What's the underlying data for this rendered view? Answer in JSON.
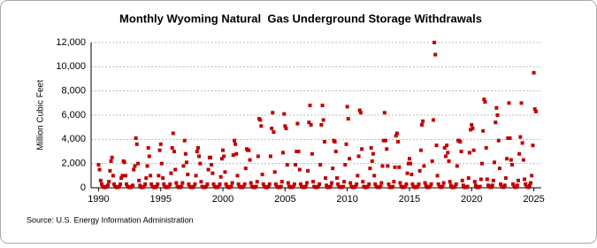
{
  "chart_data": {
    "type": "scatter",
    "title": "Monthly Wyoming Natural  Gas Underground Storage Withdrawals",
    "y_label": "Million Cubic Feet",
    "source": "Source: U.S. Energy Information Administration",
    "color": "#c00000",
    "grid": true,
    "xlim": [
      1989.4,
      2025.6
    ],
    "xticks": [
      1990,
      1995,
      2000,
      2005,
      2010,
      2015,
      2020,
      2025
    ],
    "ylim": [
      0,
      12000
    ],
    "yticks": [
      0,
      {
        "value": 2000,
        "label": "2,000"
      },
      {
        "value": 4000,
        "label": "4,000"
      },
      {
        "value": 6000,
        "label": "6,000"
      },
      {
        "value": 8000,
        "label": "8,000"
      },
      {
        "value": 10000,
        "label": "10,000"
      },
      {
        "value": 12000,
        "label": "12,000"
      }
    ],
    "x": [
      1990,
      1990.08,
      1990.17,
      1990.25,
      1990.33,
      1990.42,
      1990.5,
      1990.58,
      1990.67,
      1990.75,
      1990.83,
      1990.92,
      1991,
      1991.08,
      1991.17,
      1991.25,
      1991.33,
      1991.42,
      1991.5,
      1991.58,
      1991.67,
      1991.75,
      1991.83,
      1991.92,
      1992,
      1992.08,
      1992.17,
      1992.25,
      1992.33,
      1992.42,
      1992.5,
      1992.58,
      1992.67,
      1992.75,
      1992.83,
      1992.92,
      1993,
      1993.08,
      1993.17,
      1993.25,
      1993.33,
      1993.42,
      1993.5,
      1993.58,
      1993.67,
      1993.75,
      1993.83,
      1993.92,
      1994,
      1994.08,
      1994.17,
      1994.25,
      1994.33,
      1994.42,
      1994.5,
      1994.58,
      1994.67,
      1994.75,
      1994.83,
      1994.92,
      1995,
      1995.08,
      1995.17,
      1995.25,
      1995.33,
      1995.42,
      1995.5,
      1995.58,
      1995.67,
      1995.75,
      1995.83,
      1995.92,
      1996,
      1996.08,
      1996.17,
      1996.25,
      1996.33,
      1996.42,
      1996.5,
      1996.58,
      1996.67,
      1996.75,
      1996.83,
      1996.92,
      1997,
      1997.08,
      1997.17,
      1997.25,
      1997.33,
      1997.42,
      1997.5,
      1997.58,
      1997.67,
      1997.75,
      1997.83,
      1997.92,
      1998,
      1998.08,
      1998.17,
      1998.25,
      1998.33,
      1998.42,
      1998.5,
      1998.58,
      1998.67,
      1998.75,
      1998.83,
      1998.92,
      1999,
      1999.08,
      1999.17,
      1999.25,
      1999.33,
      1999.42,
      1999.5,
      1999.58,
      1999.67,
      1999.75,
      1999.83,
      1999.92,
      2000,
      2000.08,
      2000.17,
      2000.25,
      2000.33,
      2000.42,
      2000.5,
      2000.58,
      2000.67,
      2000.75,
      2000.83,
      2000.92,
      2001,
      2001.08,
      2001.17,
      2001.25,
      2001.33,
      2001.42,
      2001.5,
      2001.58,
      2001.67,
      2001.75,
      2001.83,
      2001.92,
      2002,
      2002.08,
      2002.17,
      2002.25,
      2002.33,
      2002.42,
      2002.5,
      2002.58,
      2002.67,
      2002.75,
      2002.83,
      2002.92,
      2003,
      2003.08,
      2003.17,
      2003.25,
      2003.33,
      2003.42,
      2003.5,
      2003.58,
      2003.67,
      2003.75,
      2003.83,
      2003.92,
      2004,
      2004.08,
      2004.17,
      2004.25,
      2004.33,
      2004.42,
      2004.5,
      2004.58,
      2004.67,
      2004.75,
      2004.83,
      2004.92,
      2005,
      2005.08,
      2005.17,
      2005.25,
      2005.33,
      2005.42,
      2005.5,
      2005.58,
      2005.67,
      2005.75,
      2005.83,
      2005.92,
      2006,
      2006.08,
      2006.17,
      2006.25,
      2006.33,
      2006.42,
      2006.5,
      2006.58,
      2006.67,
      2006.75,
      2006.83,
      2006.92,
      2007,
      2007.08,
      2007.17,
      2007.25,
      2007.33,
      2007.42,
      2007.5,
      2007.58,
      2007.67,
      2007.75,
      2007.83,
      2007.92,
      2008,
      2008.08,
      2008.17,
      2008.25,
      2008.33,
      2008.42,
      2008.5,
      2008.58,
      2008.67,
      2008.75,
      2008.83,
      2008.92,
      2009,
      2009.08,
      2009.17,
      2009.25,
      2009.33,
      2009.42,
      2009.5,
      2009.58,
      2009.67,
      2009.75,
      2009.83,
      2009.92,
      2010,
      2010.08,
      2010.17,
      2010.25,
      2010.33,
      2010.42,
      2010.5,
      2010.58,
      2010.67,
      2010.75,
      2010.83,
      2010.92,
      2011,
      2011.08,
      2011.17,
      2011.25,
      2011.33,
      2011.42,
      2011.5,
      2011.58,
      2011.67,
      2011.75,
      2011.83,
      2011.92,
      2012,
      2012.08,
      2012.17,
      2012.25,
      2012.33,
      2012.42,
      2012.5,
      2012.58,
      2012.67,
      2012.75,
      2012.83,
      2012.92,
      2013,
      2013.08,
      2013.17,
      2013.25,
      2013.33,
      2013.42,
      2013.5,
      2013.58,
      2013.67,
      2013.75,
      2013.83,
      2013.92,
      2014,
      2014.08,
      2014.17,
      2014.25,
      2014.33,
      2014.42,
      2014.5,
      2014.58,
      2014.67,
      2014.75,
      2014.83,
      2014.92,
      2015,
      2015.08,
      2015.17,
      2015.25,
      2015.33,
      2015.42,
      2015.5,
      2015.58,
      2015.67,
      2015.75,
      2015.83,
      2015.92,
      2016,
      2016.08,
      2016.17,
      2016.25,
      2016.33,
      2016.42,
      2016.5,
      2016.58,
      2016.67,
      2016.75,
      2016.83,
      2016.92,
      2017,
      2017.08,
      2017.17,
      2017.25,
      2017.33,
      2017.42,
      2017.5,
      2017.58,
      2017.67,
      2017.75,
      2017.83,
      2017.92,
      2018,
      2018.08,
      2018.17,
      2018.25,
      2018.33,
      2018.42,
      2018.5,
      2018.58,
      2018.67,
      2018.75,
      2018.83,
      2018.92,
      2019,
      2019.08,
      2019.17,
      2019.25,
      2019.33,
      2019.42,
      2019.5,
      2019.58,
      2019.67,
      2019.75,
      2019.83,
      2019.92,
      2020,
      2020.08,
      2020.17,
      2020.25,
      2020.33,
      2020.42,
      2020.5,
      2020.58,
      2020.67,
      2020.75,
      2020.83,
      2020.92,
      2021,
      2021.08,
      2021.17,
      2021.25,
      2021.33,
      2021.42,
      2021.5,
      2021.58,
      2021.67,
      2021.75,
      2021.83,
      2021.92,
      2022,
      2022.08,
      2022.17,
      2022.25,
      2022.33,
      2022.42,
      2022.5,
      2022.58,
      2022.67,
      2022.75,
      2022.83,
      2022.92,
      2023,
      2023.08,
      2023.17,
      2023.25,
      2023.33,
      2023.42,
      2023.5,
      2023.58,
      2023.67,
      2023.75,
      2023.83,
      2023.92,
      2024,
      2024.08,
      2024.17,
      2024.25,
      2024.33,
      2024.42,
      2024.5,
      2024.58,
      2024.67,
      2024.75,
      2024.83,
      2024.92,
      2025,
      2025.08,
      2025.17
    ],
    "values": [
      1900,
      1500,
      600,
      300,
      100,
      50,
      30,
      50,
      100,
      200,
      500,
      1400,
      2200,
      2500,
      1000,
      300,
      100,
      50,
      30,
      50,
      100,
      300,
      800,
      1000,
      2200,
      2100,
      1000,
      300,
      100,
      50,
      30,
      50,
      100,
      200,
      1500,
      1800,
      4100,
      3600,
      2000,
      600,
      200,
      50,
      30,
      50,
      100,
      300,
      800,
      1800,
      3300,
      2600,
      1000,
      300,
      100,
      50,
      30,
      50,
      100,
      300,
      1000,
      3100,
      3600,
      2000,
      800,
      300,
      100,
      50,
      30,
      50,
      100,
      300,
      1200,
      3300,
      4500,
      3000,
      1500,
      400,
      100,
      50,
      30,
      50,
      100,
      400,
      1800,
      3900,
      2800,
      2100,
      1100,
      300,
      100,
      50,
      30,
      50,
      100,
      300,
      1000,
      3000,
      3300,
      2600,
      2000,
      500,
      100,
      50,
      30,
      50,
      100,
      300,
      1500,
      2500,
      2500,
      1900,
      1200,
      300,
      100,
      50,
      30,
      50,
      100,
      300,
      900,
      2400,
      3100,
      2600,
      1300,
      300,
      100,
      50,
      30,
      50,
      100,
      400,
      2700,
      3900,
      3600,
      2800,
      1000,
      300,
      100,
      50,
      30,
      50,
      100,
      300,
      1600,
      3200,
      3100,
      3100,
      2300,
      400,
      100,
      50,
      30,
      50,
      100,
      500,
      2600,
      5700,
      5600,
      5100,
      1100,
      300,
      100,
      50,
      30,
      50,
      100,
      300,
      2600,
      4900,
      6200,
      4600,
      1300,
      300,
      100,
      50,
      30,
      50,
      100,
      500,
      2900,
      6100,
      5100,
      4900,
      1900,
      400,
      100,
      50,
      30,
      50,
      100,
      300,
      1900,
      3000,
      5300,
      3000,
      1500,
      300,
      100,
      50,
      30,
      50,
      100,
      400,
      1400,
      5400,
      6800,
      5200,
      2800,
      500,
      100,
      50,
      30,
      50,
      100,
      300,
      1900,
      5200,
      6800,
      5600,
      3800,
      800,
      200,
      50,
      30,
      50,
      100,
      400,
      1600,
      3900,
      3800,
      3000,
      800,
      300,
      100,
      50,
      30,
      50,
      100,
      500,
      1900,
      3600,
      6700,
      5700,
      2400,
      400,
      100,
      50,
      30,
      50,
      100,
      300,
      1000,
      2600,
      6400,
      6200,
      3200,
      500,
      100,
      50,
      30,
      50,
      100,
      300,
      1600,
      3300,
      2200,
      2800,
      1000,
      300,
      100,
      50,
      30,
      50,
      100,
      400,
      1800,
      3900,
      6200,
      3900,
      3200,
      1800,
      300,
      50,
      30,
      50,
      100,
      500,
      1700,
      4300,
      4500,
      3800,
      1700,
      400,
      100,
      50,
      30,
      50,
      100,
      300,
      1200,
      2000,
      2400,
      2000,
      1100,
      300,
      100,
      50,
      30,
      50,
      100,
      300,
      1400,
      3100,
      5200,
      5500,
      1800,
      400,
      200,
      50,
      30,
      50,
      100,
      300,
      2200,
      5600,
      12000,
      11000,
      3500,
      1000,
      300,
      100,
      50,
      50,
      100,
      400,
      3300,
      2600,
      3500,
      2900,
      2200,
      500,
      200,
      50,
      30,
      50,
      100,
      300,
      1800,
      3900,
      3900,
      3800,
      3000,
      600,
      200,
      50,
      30,
      50,
      100,
      800,
      2900,
      4800,
      5200,
      4900,
      3100,
      500,
      200,
      50,
      30,
      50,
      100,
      700,
      2000,
      4700,
      7300,
      7100,
      3300,
      700,
      200,
      100,
      50,
      50,
      200,
      600,
      2100,
      5400,
      6600,
      6000,
      3900,
      1600,
      300,
      100,
      50,
      50,
      200,
      800,
      2400,
      4100,
      7000,
      4100,
      2300,
      1900,
      300,
      100,
      50,
      50,
      200,
      600,
      2800,
      4200,
      7000,
      3700,
      2300,
      700,
      300,
      100,
      50,
      50,
      200,
      400,
      1000,
      3500,
      9500,
      6500,
      6300
    ]
  }
}
